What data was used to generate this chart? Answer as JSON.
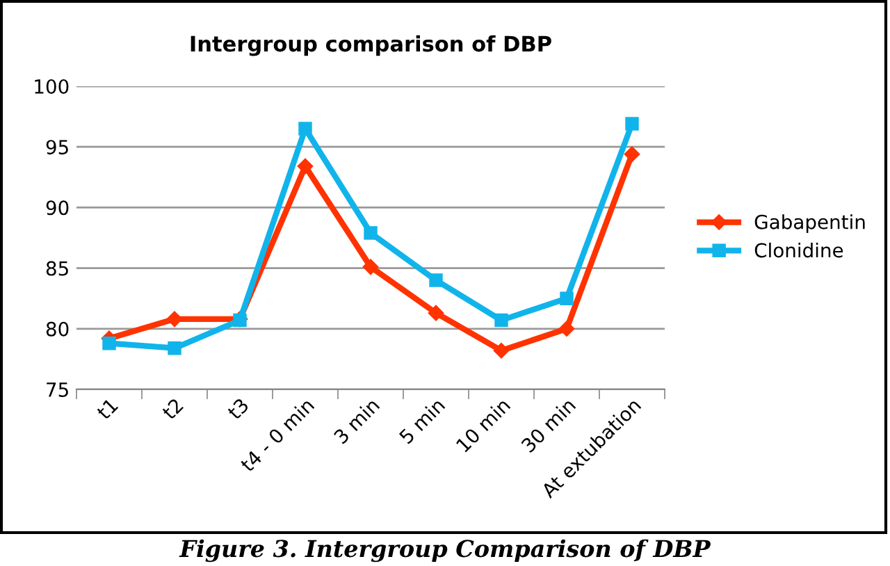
{
  "chart_data": {
    "type": "line",
    "title": "Intergroup comparison of DBP",
    "categories": [
      "t1",
      "t2",
      "t3",
      "t4 - 0 min",
      "3 min",
      "5 min",
      "10 min",
      "30 min",
      "At extubation"
    ],
    "series": [
      {
        "name": "Gabapentin",
        "color": "#ff3300",
        "marker": "diamond",
        "values": [
          79.2,
          80.8,
          80.8,
          93.4,
          85.1,
          81.3,
          78.2,
          80.0,
          94.4
        ]
      },
      {
        "name": "Clonidine",
        "color": "#11b4ea",
        "marker": "square",
        "values": [
          78.8,
          78.4,
          80.7,
          96.5,
          87.9,
          84.0,
          80.7,
          82.5,
          96.9
        ]
      }
    ],
    "ylim": [
      75,
      100
    ],
    "yticks": [
      75,
      80,
      85,
      90,
      95,
      100
    ],
    "grid": "y",
    "legend": "right",
    "line_style": "solid",
    "annotations": [
      "Figure 3. Intergroup Comparison of DBP"
    ]
  }
}
